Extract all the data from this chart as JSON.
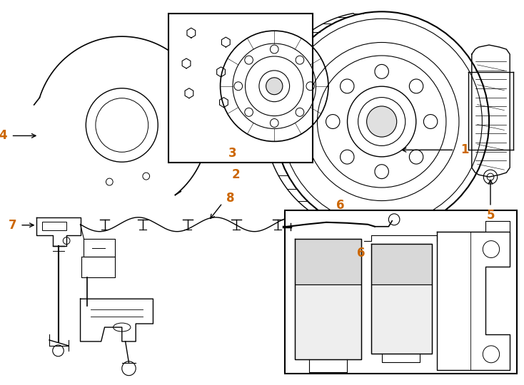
{
  "bg_color": "#ffffff",
  "line_color": "#000000",
  "number_color": "#cc6600",
  "fig_width": 7.34,
  "fig_height": 5.4,
  "dpi": 100
}
